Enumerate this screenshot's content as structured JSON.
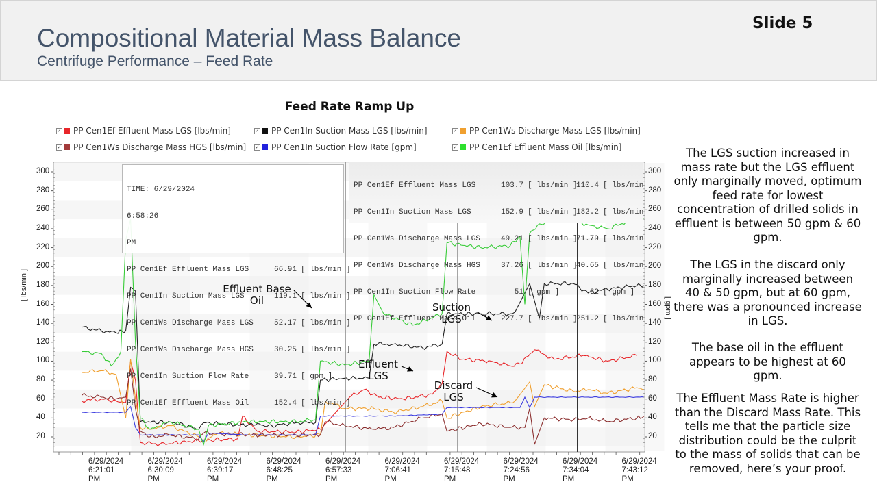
{
  "header": {
    "title": "Compositional Material Mass Balance",
    "subtitle": "Centrifuge Performance – Feed Rate",
    "slide_number": "Slide 5"
  },
  "chart_data": {
    "type": "line",
    "title": "Feed Rate Ramp Up",
    "ylabel_left": "[ lbs/min ]",
    "ylabel_right": "[ gpm ]",
    "ylim": [
      0,
      310
    ],
    "y_ticks": [
      20,
      40,
      60,
      80,
      100,
      120,
      140,
      160,
      180,
      200,
      220,
      240,
      260,
      280,
      300
    ],
    "x_ticks": [
      [
        "6/29/2024",
        "6:21:01",
        "PM"
      ],
      [
        "6/29/2024",
        "6:30:09",
        "PM"
      ],
      [
        "6/29/2024",
        "6:39:17",
        "PM"
      ],
      [
        "6/29/2024",
        "6:48:25",
        "PM"
      ],
      [
        "6/29/2024",
        "6:57:33",
        "PM"
      ],
      [
        "6/29/2024",
        "7:06:41",
        "PM"
      ],
      [
        "6/29/2024",
        "7:15:48",
        "PM"
      ],
      [
        "6/29/2024",
        "7:24:56",
        "PM"
      ],
      [
        "6/29/2024",
        "7:34:04",
        "PM"
      ],
      [
        "6/29/2024",
        "7:43:12",
        "PM"
      ]
    ],
    "x_minutes_range": [
      -4.0,
      86.0
    ],
    "grid": true,
    "legend_position": "top",
    "series": [
      {
        "name": "PP Cen1Ef Effluent Mass LGS [lbs/min]",
        "color": "#e8262a",
        "points": [
          [
            -4,
            58
          ],
          [
            0,
            60
          ],
          [
            3,
            58
          ],
          [
            5,
            56
          ],
          [
            6,
            100
          ],
          [
            7,
            80
          ],
          [
            8,
            14
          ],
          [
            12,
            12
          ],
          [
            20,
            16
          ],
          [
            28,
            18
          ],
          [
            29,
            42
          ],
          [
            32,
            26
          ],
          [
            40,
            25
          ],
          [
            45,
            28
          ],
          [
            51,
            62
          ],
          [
            54,
            70
          ],
          [
            57,
            62
          ],
          [
            62,
            60
          ],
          [
            68,
            65
          ],
          [
            70,
            76
          ],
          [
            71,
            110
          ],
          [
            74,
            102
          ],
          [
            80,
            100
          ],
          [
            84,
            95
          ],
          [
            86,
            97
          ],
          [
            89,
            112
          ],
          [
            93,
            102
          ],
          [
            99,
            106
          ],
          [
            104,
            100
          ],
          [
            110,
            106
          ]
        ]
      },
      {
        "name": "PP Cen1In Suction Mass LGS [lbs/min]",
        "color": "#222222",
        "points": [
          [
            -4,
            136
          ],
          [
            0,
            132
          ],
          [
            3,
            130
          ],
          [
            5,
            132
          ],
          [
            6,
            178
          ],
          [
            7,
            174
          ],
          [
            8,
            36
          ],
          [
            15,
            35
          ],
          [
            20,
            28
          ],
          [
            21,
            35
          ],
          [
            24,
            34
          ],
          [
            30,
            32
          ],
          [
            32,
            34
          ],
          [
            34,
            31
          ],
          [
            40,
            35
          ],
          [
            44,
            35
          ],
          [
            45,
            80
          ],
          [
            50,
            82
          ],
          [
            55,
            82
          ],
          [
            56,
            118
          ],
          [
            60,
            118
          ],
          [
            66,
            114
          ],
          [
            70,
            118
          ],
          [
            71,
            150
          ],
          [
            78,
            150
          ],
          [
            84,
            150
          ],
          [
            85,
            152
          ],
          [
            88,
            182
          ],
          [
            90,
            145
          ],
          [
            91,
            182
          ],
          [
            97,
            182
          ],
          [
            100,
            172
          ],
          [
            104,
            176
          ],
          [
            110,
            180
          ],
          [
            112,
            180
          ]
        ]
      },
      {
        "name": "PP Cen1Ws Discharge Mass LGS [lbs/min]",
        "color": "#f0a030",
        "points": [
          [
            -4,
            88
          ],
          [
            0,
            90
          ],
          [
            3,
            86
          ],
          [
            5,
            40
          ],
          [
            6,
            102
          ],
          [
            7,
            60
          ],
          [
            8,
            30
          ],
          [
            10,
            28
          ],
          [
            14,
            32
          ],
          [
            20,
            20
          ],
          [
            21,
            15
          ],
          [
            24,
            24
          ],
          [
            30,
            22
          ],
          [
            40,
            20
          ],
          [
            45,
            22
          ],
          [
            46,
            58
          ],
          [
            50,
            50
          ],
          [
            56,
            50
          ],
          [
            60,
            46
          ],
          [
            66,
            52
          ],
          [
            70,
            58
          ],
          [
            71,
            40
          ],
          [
            78,
            52
          ],
          [
            84,
            56
          ],
          [
            85,
            58
          ],
          [
            88,
            78
          ],
          [
            89,
            52
          ],
          [
            91,
            75
          ],
          [
            97,
            68
          ],
          [
            100,
            70
          ],
          [
            104,
            66
          ],
          [
            110,
            72
          ],
          [
            112,
            70
          ]
        ]
      },
      {
        "name": "PP Cen1Ws Discharge Mass HGS [lbs/min]",
        "color": "#8b2e2e",
        "points": [
          [
            -4,
            64
          ],
          [
            0,
            62
          ],
          [
            3,
            60
          ],
          [
            5,
            62
          ],
          [
            6,
            92
          ],
          [
            7,
            50
          ],
          [
            8,
            26
          ],
          [
            10,
            20
          ],
          [
            14,
            22
          ],
          [
            20,
            18
          ],
          [
            21,
            24
          ],
          [
            30,
            22
          ],
          [
            40,
            22
          ],
          [
            45,
            22
          ],
          [
            46,
            36
          ],
          [
            50,
            32
          ],
          [
            56,
            28
          ],
          [
            60,
            30
          ],
          [
            66,
            40
          ],
          [
            70,
            44
          ],
          [
            71,
            26
          ],
          [
            78,
            34
          ],
          [
            84,
            30
          ],
          [
            87,
            30
          ],
          [
            88,
            50
          ],
          [
            89,
            12
          ],
          [
            91,
            40
          ],
          [
            97,
            38
          ],
          [
            100,
            40
          ],
          [
            104,
            36
          ],
          [
            110,
            40
          ],
          [
            112,
            42
          ]
        ]
      },
      {
        "name": "PP Cen1In Suction Flow Rate [gpm]",
        "color": "#3b3bdf",
        "points": [
          [
            -4,
            46
          ],
          [
            5,
            46
          ],
          [
            6,
            52
          ],
          [
            7,
            30
          ],
          [
            8,
            22
          ],
          [
            20,
            22
          ],
          [
            21,
            15
          ],
          [
            22,
            24
          ],
          [
            30,
            22
          ],
          [
            44,
            22
          ],
          [
            45,
            42
          ],
          [
            60,
            42
          ],
          [
            70,
            44
          ],
          [
            71,
            51
          ],
          [
            86,
            51
          ],
          [
            87,
            62
          ],
          [
            88,
            51
          ],
          [
            89,
            62
          ],
          [
            112,
            62
          ]
        ]
      },
      {
        "name": "PP Cen1Ef Effluent Mass Oil [lbs/min]",
        "color": "#38cc38",
        "points": [
          [
            -4,
            110
          ],
          [
            0,
            108
          ],
          [
            2,
            95
          ],
          [
            3,
            102
          ],
          [
            4,
            110
          ],
          [
            5,
            228
          ],
          [
            6,
            250
          ],
          [
            7,
            120
          ],
          [
            8,
            40
          ],
          [
            10,
            28
          ],
          [
            14,
            36
          ],
          [
            20,
            28
          ],
          [
            21,
            12
          ],
          [
            22,
            32
          ],
          [
            30,
            36
          ],
          [
            40,
            36
          ],
          [
            44,
            38
          ],
          [
            45,
            100
          ],
          [
            50,
            96
          ],
          [
            55,
            100
          ],
          [
            56,
            170
          ],
          [
            58,
            150
          ],
          [
            64,
            138
          ],
          [
            70,
            150
          ],
          [
            71,
            225
          ],
          [
            78,
            220
          ],
          [
            84,
            222
          ],
          [
            86,
            232
          ],
          [
            87,
            160
          ],
          [
            88,
            235
          ],
          [
            90,
            245
          ],
          [
            95,
            252
          ],
          [
            100,
            244
          ],
          [
            104,
            240
          ],
          [
            110,
            251
          ],
          [
            112,
            251
          ]
        ]
      }
    ],
    "annotations": [
      {
        "text": "Effluent Base Oil",
        "target_series": "PP Cen1Ef Effluent Mass Oil [lbs/min]"
      },
      {
        "text": "Suction LGS",
        "target_series": "PP Cen1In Suction Mass LGS [lbs/min]"
      },
      {
        "text": "Effluent LGS",
        "target_series": "PP Cen1Ef Effluent Mass LGS [lbs/min]"
      },
      {
        "text": "Discard LGS",
        "target_series": "PP Cen1Ws Discharge Mass LGS [lbs/min]"
      }
    ]
  },
  "legend": [
    {
      "label": "PP Cen1Ef Effluent Mass LGS [lbs/min]",
      "color": "#e8262a"
    },
    {
      "label": "PP Cen1In Suction Mass LGS [lbs/min]",
      "color": "#111111"
    },
    {
      "label": "PP Cen1Ws Discharge Mass LGS [lbs/min]",
      "color": "#f0a030"
    },
    {
      "label": "PP Cen1Ws Discharge Mass HGS [lbs/min]",
      "color": "#a33a3a"
    },
    {
      "label": "PP Cen1In Suction Flow Rate [gpm]",
      "color": "#2222dd"
    },
    {
      "label": "PP Cen1Ef Effluent Mass Oil [lbs/min]",
      "color": "#2ee02e"
    }
  ],
  "tooltip1": {
    "time_line1": "TIME: 6/29/2024",
    "time_line2": "6:58:26",
    "time_line3": "PM",
    "rows": [
      {
        "label": "PP Cen1Ef Effluent Mass LGS",
        "value": "66.91",
        "unit": "[ lbs/min ]"
      },
      {
        "label": "PP Cen1In Suction Mass LGS",
        "value": "119.1",
        "unit": "[ lbs/min ]"
      },
      {
        "label": "PP Cen1Ws Discharge Mass LGS",
        "value": "52.17",
        "unit": "[ lbs/min ]"
      },
      {
        "label": "PP Cen1Ws Discharge Mass HGS",
        "value": "30.25",
        "unit": "[ lbs/min ]"
      },
      {
        "label": "PP Cen1In Suction Flow Rate",
        "value": "39.71",
        "unit": "[ gpm ]"
      },
      {
        "label": "PP Cen1Ef Effluent Mass Oil",
        "value": "152.4",
        "unit": "[ lbs/min ]"
      }
    ]
  },
  "tooltip2": {
    "rows": [
      {
        "label": "PP Cen1Ef Effluent Mass LGS",
        "value": "103.7",
        "unit": "[ lbs/min ]"
      },
      {
        "label": "PP Cen1In Suction Mass LGS",
        "value": "152.9",
        "unit": "[ lbs/min ]"
      },
      {
        "label": "PP Cen1Ws Discharge Mass LGS",
        "value": "49.21",
        "unit": "[ lbs/min ]"
      },
      {
        "label": "PP Cen1Ws Discharge Mass HGS",
        "value": "37.26",
        "unit": "[ lbs/min ]"
      },
      {
        "label": "PP Cen1In Suction Flow Rate",
        "value": "51",
        "unit": "[ gpm ]"
      },
      {
        "label": "PP Cen1Ef Effluent Mass Oil",
        "value": "227.7",
        "unit": "[ lbs/min ]"
      }
    ]
  },
  "tooltip3": {
    "rows": [
      {
        "value": "110.4",
        "unit": "[ lbs/min"
      },
      {
        "value": "182.2",
        "unit": "[ lbs/min"
      },
      {
        "value": "71.79",
        "unit": "[ lbs/min"
      },
      {
        "value": "40.65",
        "unit": "[ lbs/min"
      },
      {
        "value": "62",
        "unit": "[ gpm ]"
      },
      {
        "value": "251.2",
        "unit": "[ lbs/min"
      }
    ]
  },
  "notes": [
    "The LGS suction increased in mass rate but the LGS effluent only marginally moved, optimum feed rate for lowest concentration of drilled solids in effluent is between 50 gpm & 60 gpm.",
    "The LGS in the discard only marginally increased between 40 & 50 gpm, but at 60 gpm, there was a pronounced increase in LGS.",
    "The base oil in the effluent appears to be highest at 60 gpm.",
    "The Effluent Mass Rate is higher than the Discard Mass Rate. This tells me that the particle size distribution could be the culprit to the mass of solids that can be removed, here’s your proof."
  ],
  "annotation_labels": {
    "effluent_base_oil_1": "Effluent Base",
    "effluent_base_oil_2": "Oil",
    "suction_lgs_1": "Suction",
    "suction_lgs_2": "LGS",
    "effluent_lgs_1": "Effluent",
    "effluent_lgs_2": "LGS",
    "discard_lgs_1": "Discard",
    "discard_lgs_2": "LGS"
  }
}
